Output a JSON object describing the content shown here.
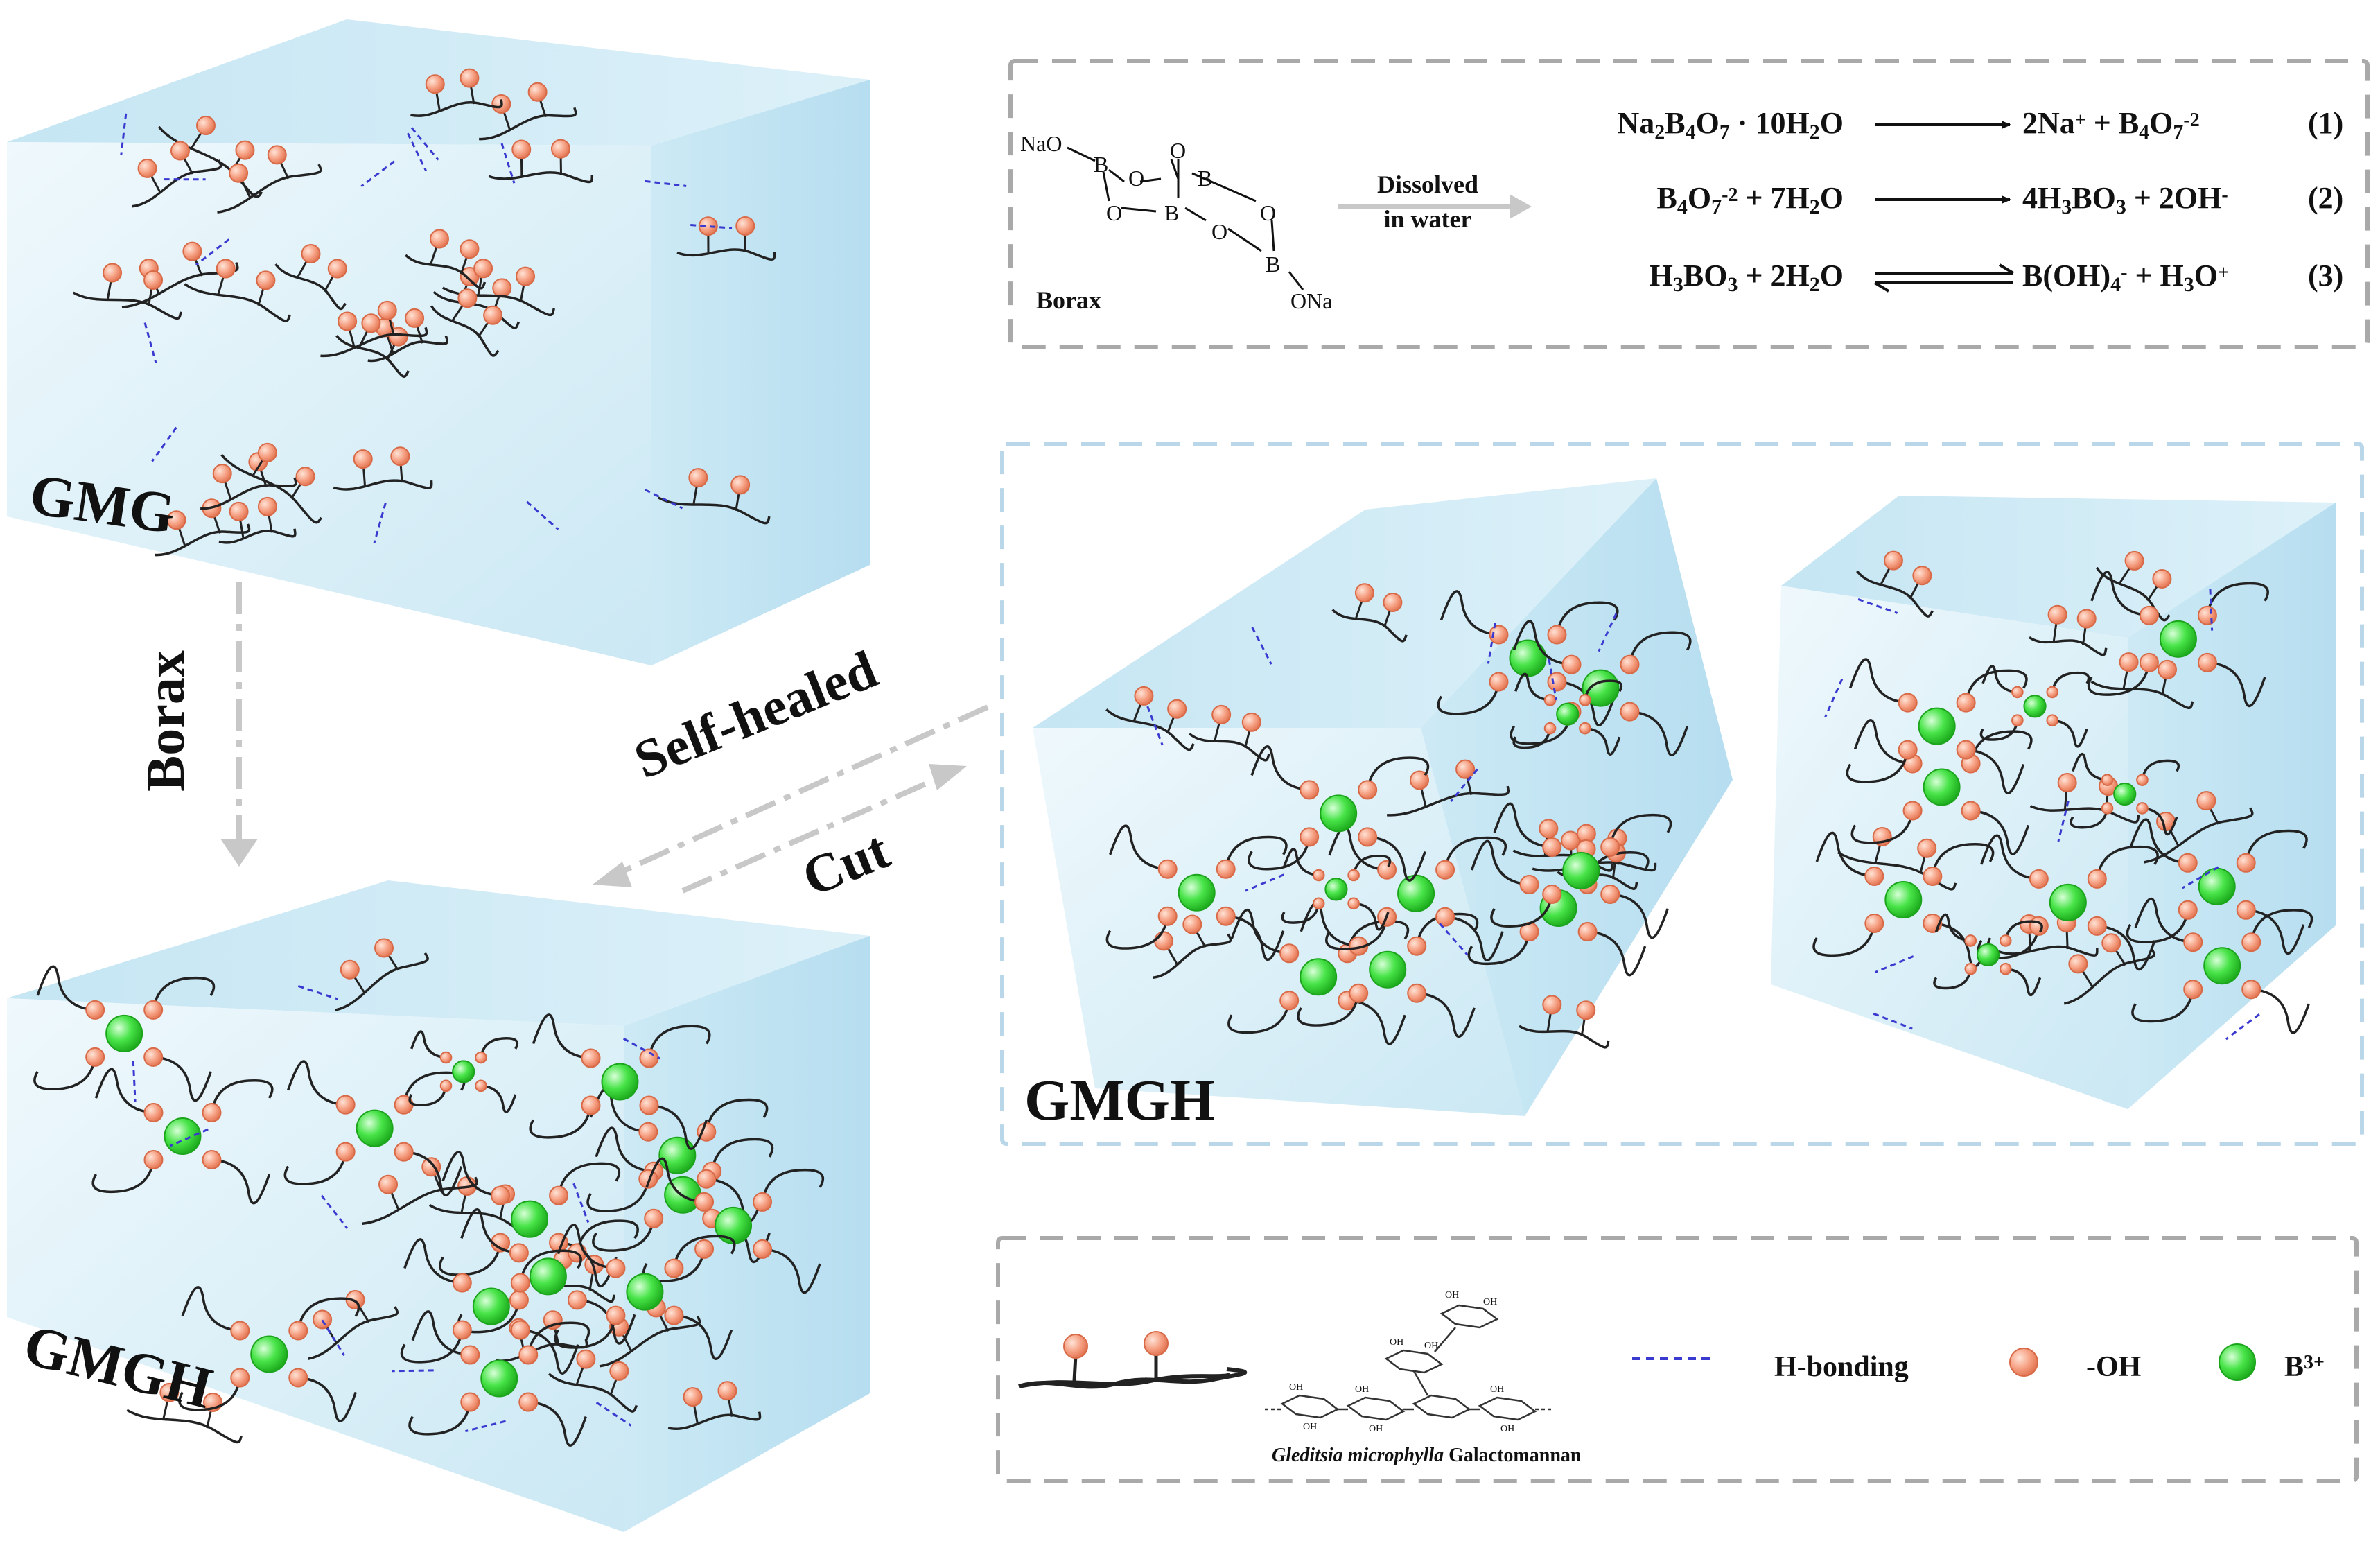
{
  "colors": {
    "cube_light": "#eaf6fb",
    "cube_mid": "#cfeaf4",
    "cube_dark": "#b5dff0",
    "oh_fill": "#f59a7c",
    "oh_stroke": "#d86a48",
    "boron_fill": "#3fe03f",
    "boron_stroke": "#1da41d",
    "hbond": "#3a3ad0",
    "chain": "#222222",
    "box_border_gray": "#a9a9a9",
    "box_border_blue": "#b9d7e8",
    "arrow_gray": "#c8c8c8"
  },
  "labels": {
    "gmg": "GMG",
    "gmgh_left": "GMGH",
    "gmgh_right": "GMGH",
    "borax_arrow": "Borax",
    "self_healed": "Self-healed",
    "cut": "Cut"
  },
  "reaction_box": {
    "structure_caption": "Borax",
    "atoms": {
      "nao": "NaO",
      "ona": "ONa",
      "b": "B",
      "o": "O"
    },
    "dissolve_line1": "Dissolved",
    "dissolve_line2": "in water",
    "eq1": {
      "left": [
        "Na",
        "2",
        "B",
        "4",
        "O",
        "7",
        " · 10H",
        "2",
        "O"
      ],
      "right": [
        "2Na",
        "+",
        " + B",
        "4",
        "O",
        "7",
        "-2"
      ],
      "num": "(1)"
    },
    "eq2": {
      "left": [
        "B",
        "4",
        "O",
        "7",
        "-2",
        " + 7H",
        "2",
        "O"
      ],
      "right": [
        "4H",
        "3",
        "BO",
        "3",
        " + 2OH",
        "-"
      ],
      "num": "(2)"
    },
    "eq3": {
      "left": [
        "H",
        "3",
        "BO",
        "3",
        " + 2H",
        "2",
        "O"
      ],
      "right": [
        "B(OH)",
        "4",
        "-",
        " + H",
        "3",
        "O",
        "+"
      ],
      "num": "(3)"
    }
  },
  "legend": {
    "species_italic": "Gleditsia microphylla",
    "species_rest": " Galactomannan",
    "hbond": "H-bonding",
    "oh": "-OH",
    "boron": "B",
    "boron_sup": "3+",
    "oh_mini": "OH"
  }
}
